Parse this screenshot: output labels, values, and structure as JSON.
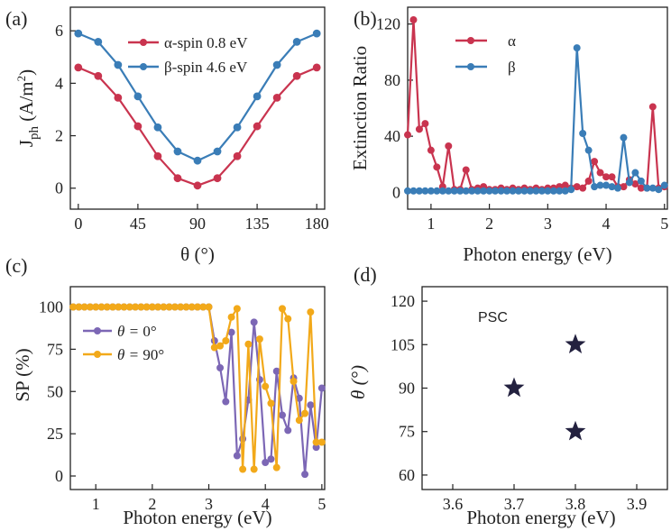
{
  "colors": {
    "alpha": "#c9344f",
    "beta": "#3a7db7",
    "theta0": "#7c67b5",
    "theta90": "#f2a91a",
    "star": "#23213f"
  },
  "chart_data": [
    {
      "panel": "(a)",
      "type": "line",
      "xlabel": "θ (°)",
      "ylabel_main": "J",
      "ylabel_sub": "ph",
      "ylabel_unit": " (A/m",
      "ylabel_sup": "2",
      "ylabel_close": ")",
      "xlim": [
        -6,
        186
      ],
      "ylim": [
        -0.8,
        6.9
      ],
      "xticks": [
        0,
        45,
        90,
        135,
        180
      ],
      "yticks": [
        0,
        2,
        4,
        6
      ],
      "legend_position": "top-center",
      "series": [
        {
          "name": "α-spin 0.8 eV",
          "color_key": "alpha",
          "x": [
            0,
            15,
            30,
            45,
            60,
            75,
            90,
            105,
            120,
            135,
            150,
            165,
            180
          ],
          "y": [
            4.6,
            4.28,
            3.45,
            2.36,
            1.22,
            0.38,
            0.1,
            0.38,
            1.22,
            2.36,
            3.45,
            4.28,
            4.6
          ]
        },
        {
          "name": "β-spin 4.6 eV",
          "color_key": "beta",
          "x": [
            0,
            15,
            30,
            45,
            60,
            75,
            90,
            105,
            120,
            135,
            150,
            165,
            180
          ],
          "y": [
            5.9,
            5.58,
            4.7,
            3.5,
            2.32,
            1.4,
            1.05,
            1.4,
            2.32,
            3.5,
            4.7,
            5.58,
            5.9
          ]
        }
      ]
    },
    {
      "panel": "(b)",
      "type": "line",
      "xlabel": "Photon energy (eV)",
      "ylabel": "Extinction Ratio",
      "xlim": [
        0.6,
        5.05
      ],
      "ylim": [
        -12,
        132
      ],
      "xticks": [
        1,
        2,
        3,
        4,
        5
      ],
      "yticks": [
        0,
        40,
        80,
        120
      ],
      "legend_position": "top-center",
      "series": [
        {
          "name": "α",
          "color_key": "alpha",
          "x": [
            0.6,
            0.7,
            0.8,
            0.9,
            1.0,
            1.1,
            1.2,
            1.3,
            1.4,
            1.5,
            1.6,
            1.7,
            1.8,
            1.9,
            2.0,
            2.1,
            2.2,
            2.3,
            2.4,
            2.5,
            2.6,
            2.7,
            2.8,
            2.9,
            3.0,
            3.1,
            3.2,
            3.3,
            3.4,
            3.5,
            3.6,
            3.7,
            3.8,
            3.9,
            4.0,
            4.1,
            4.2,
            4.3,
            4.4,
            4.5,
            4.6,
            4.7,
            4.8,
            4.9,
            5.0
          ],
          "y": [
            41,
            123,
            45,
            49,
            30,
            18,
            4,
            33,
            2,
            2,
            16,
            2,
            3,
            4,
            2,
            2,
            3,
            2,
            3,
            2,
            3,
            2,
            3,
            2,
            3,
            3,
            4,
            5,
            3,
            4,
            3,
            8,
            22,
            14,
            11,
            11,
            4,
            4,
            9,
            6,
            3,
            3,
            61,
            3,
            4
          ]
        },
        {
          "name": "β",
          "color_key": "beta",
          "x": [
            0.6,
            0.7,
            0.8,
            0.9,
            1.0,
            1.1,
            1.2,
            1.3,
            1.4,
            1.5,
            1.6,
            1.7,
            1.8,
            1.9,
            2.0,
            2.1,
            2.2,
            2.3,
            2.4,
            2.5,
            2.6,
            2.7,
            2.8,
            2.9,
            3.0,
            3.1,
            3.2,
            3.3,
            3.4,
            3.5,
            3.6,
            3.7,
            3.8,
            3.9,
            4.0,
            4.1,
            4.2,
            4.3,
            4.4,
            4.5,
            4.6,
            4.7,
            4.8,
            4.9,
            5.0
          ],
          "y": [
            1,
            1,
            1,
            1,
            1,
            1,
            1,
            1,
            1,
            1,
            1,
            1,
            1,
            1,
            1,
            1,
            1,
            1,
            1,
            1,
            1,
            1,
            1,
            1,
            1,
            1,
            1,
            1,
            2,
            103,
            42,
            30,
            4,
            5,
            5,
            4,
            3,
            39,
            7,
            14,
            8,
            3,
            3,
            2,
            5
          ]
        }
      ]
    },
    {
      "panel": "(c)",
      "type": "line",
      "xlabel": "Photon energy (eV)",
      "ylabel": "SP (%)",
      "xlim": [
        0.55,
        5.05
      ],
      "ylim": [
        -8,
        112
      ],
      "xticks": [
        1,
        2,
        3,
        4,
        5
      ],
      "yticks": [
        0,
        25,
        50,
        75,
        100
      ],
      "legend_position": "center",
      "series": [
        {
          "name_prefix": "θ = ",
          "name_value": "0°",
          "color_key": "theta0",
          "x": [
            0.6,
            0.7,
            0.8,
            0.9,
            1.0,
            1.1,
            1.2,
            1.3,
            1.4,
            1.5,
            1.6,
            1.7,
            1.8,
            1.9,
            2.0,
            2.1,
            2.2,
            2.3,
            2.4,
            2.5,
            2.6,
            2.7,
            2.8,
            2.9,
            3.0,
            3.1,
            3.2,
            3.3,
            3.4,
            3.5,
            3.6,
            3.7,
            3.8,
            3.9,
            4.0,
            4.1,
            4.2,
            4.3,
            4.4,
            4.5,
            4.6,
            4.7,
            4.8,
            4.9,
            5.0
          ],
          "y": [
            100,
            100,
            100,
            100,
            100,
            100,
            100,
            100,
            100,
            100,
            100,
            100,
            100,
            100,
            100,
            100,
            100,
            100,
            100,
            100,
            100,
            100,
            100,
            100,
            100,
            80,
            64,
            44,
            85,
            12,
            22,
            45,
            91,
            57,
            8,
            10,
            62,
            36,
            27,
            58,
            46,
            1,
            42,
            17,
            52
          ]
        },
        {
          "name_prefix": "θ = ",
          "name_value": "90°",
          "color_key": "theta90",
          "x": [
            0.6,
            0.7,
            0.8,
            0.9,
            1.0,
            1.1,
            1.2,
            1.3,
            1.4,
            1.5,
            1.6,
            1.7,
            1.8,
            1.9,
            2.0,
            2.1,
            2.2,
            2.3,
            2.4,
            2.5,
            2.6,
            2.7,
            2.8,
            2.9,
            3.0,
            3.1,
            3.2,
            3.3,
            3.4,
            3.5,
            3.6,
            3.7,
            3.8,
            3.9,
            4.0,
            4.1,
            4.2,
            4.3,
            4.4,
            4.5,
            4.6,
            4.7,
            4.8,
            4.9,
            5.0
          ],
          "y": [
            100,
            100,
            100,
            100,
            100,
            100,
            100,
            100,
            100,
            100,
            100,
            100,
            100,
            100,
            100,
            100,
            100,
            100,
            100,
            100,
            100,
            100,
            100,
            100,
            100,
            76,
            77,
            80,
            94,
            99,
            4,
            78,
            4,
            81,
            53,
            43,
            5,
            99,
            93,
            56,
            33,
            37,
            97,
            20,
            20
          ]
        }
      ]
    },
    {
      "panel": "(d)",
      "type": "scatter",
      "xlabel": "Photon energy (eV)",
      "ylabel": "θ (°)",
      "xlim": [
        3.55,
        3.95
      ],
      "ylim": [
        55,
        125
      ],
      "xticks": [
        "3.6",
        "3.7",
        "3.8",
        "3.9"
      ],
      "yticks": [
        60,
        75,
        90,
        105,
        120
      ],
      "annotation": "PSC",
      "marker": "star",
      "color_key": "star",
      "points": [
        {
          "x": 3.7,
          "y": 90
        },
        {
          "x": 3.8,
          "y": 105
        },
        {
          "x": 3.8,
          "y": 75
        }
      ]
    }
  ]
}
